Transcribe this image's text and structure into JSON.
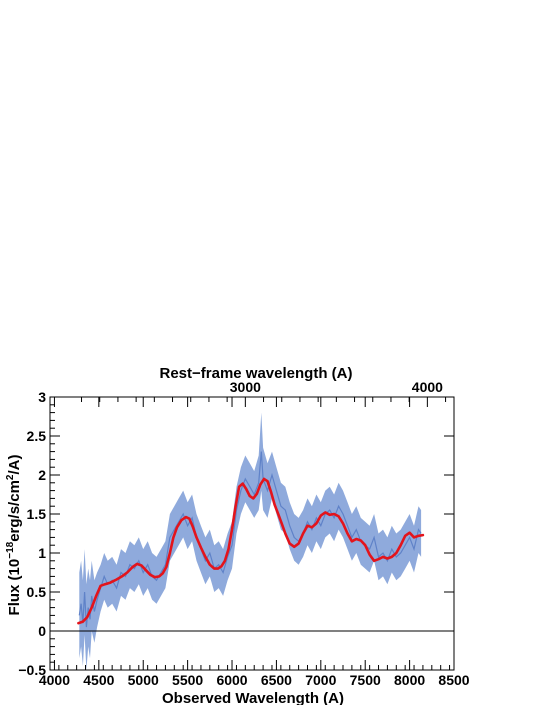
{
  "chart_data": {
    "type": "line",
    "xlabel": "Observed Wavelength (A)",
    "ylabel_parts": [
      "Flux (10",
      "−18",
      "erg/s/cm",
      "2",
      "/A)"
    ],
    "top_xlabel": "Rest−frame wavelength (A)",
    "xlim": [
      3950,
      8500
    ],
    "ylim": [
      -0.5,
      3
    ],
    "x_ticks": [
      4000,
      4500,
      5000,
      5500,
      6000,
      6500,
      7000,
      7500,
      8000,
      8500
    ],
    "y_ticks": [
      -0.5,
      0,
      0.5,
      1,
      1.5,
      2,
      2.5,
      3
    ],
    "x_tick_labels": [
      "4000",
      "4500",
      "5000",
      "5500",
      "6000",
      "6500",
      "7000",
      "7500",
      "8000",
      "8500"
    ],
    "y_tick_labels": [
      "−0.5",
      "0",
      "0.5",
      "1",
      "1.5",
      "2",
      "2.5",
      "3"
    ],
    "top_axis": {
      "redshift": 1.05,
      "ticks": [
        3000,
        4000
      ],
      "tick_labels": [
        "3000",
        "4000"
      ]
    },
    "zero_line": 0,
    "colors": {
      "spectrum": "#7b9bd6",
      "model": "#e3141c",
      "axis": "#000000"
    },
    "series": [
      {
        "role": "observed spectrum",
        "style": "noisy band",
        "x": [
          4280,
          4300,
          4320,
          4340,
          4360,
          4380,
          4400,
          4420,
          4450,
          4480,
          4520,
          4560,
          4600,
          4650,
          4700,
          4750,
          4800,
          4850,
          4900,
          4950,
          5000,
          5050,
          5100,
          5150,
          5200,
          5250,
          5300,
          5350,
          5400,
          5450,
          5500,
          5550,
          5600,
          5650,
          5700,
          5750,
          5800,
          5850,
          5900,
          5950,
          6000,
          6050,
          6100,
          6150,
          6200,
          6250,
          6300,
          6330,
          6350,
          6400,
          6450,
          6500,
          6550,
          6600,
          6650,
          6700,
          6750,
          6800,
          6850,
          6900,
          6950,
          7000,
          7050,
          7100,
          7150,
          7200,
          7250,
          7300,
          7350,
          7400,
          7450,
          7500,
          7550,
          7600,
          7650,
          7700,
          7750,
          7800,
          7850,
          7900,
          7950,
          8000,
          8050,
          8100,
          8130
        ],
        "y": [
          0.2,
          0.35,
          0.1,
          0.5,
          0.05,
          0.3,
          0.15,
          0.45,
          0.25,
          0.4,
          0.55,
          0.7,
          0.6,
          0.65,
          0.55,
          0.75,
          0.7,
          0.85,
          0.8,
          0.9,
          0.75,
          0.85,
          0.7,
          0.65,
          0.75,
          0.85,
          1.2,
          1.3,
          1.4,
          1.5,
          1.35,
          1.45,
          1.2,
          1.05,
          0.9,
          1.0,
          0.8,
          0.85,
          0.75,
          0.95,
          1.1,
          1.55,
          1.8,
          1.95,
          1.85,
          1.75,
          1.9,
          2.3,
          1.95,
          1.8,
          2.0,
          1.8,
          1.6,
          1.55,
          1.35,
          1.2,
          1.15,
          1.25,
          1.4,
          1.3,
          1.45,
          1.35,
          1.5,
          1.55,
          1.45,
          1.6,
          1.5,
          1.35,
          1.2,
          1.3,
          1.15,
          1.1,
          1.05,
          1.2,
          0.95,
          1.0,
          0.9,
          1.05,
          0.95,
          1.0,
          1.1,
          1.2,
          1.05,
          1.3,
          1.25
        ],
        "err": [
          0.55,
          0.55,
          0.55,
          0.55,
          0.55,
          0.5,
          0.5,
          0.45,
          0.4,
          0.35,
          0.3,
          0.3,
          0.3,
          0.3,
          0.3,
          0.3,
          0.3,
          0.3,
          0.3,
          0.3,
          0.3,
          0.3,
          0.3,
          0.3,
          0.3,
          0.3,
          0.3,
          0.3,
          0.3,
          0.3,
          0.3,
          0.3,
          0.3,
          0.3,
          0.3,
          0.3,
          0.3,
          0.3,
          0.3,
          0.3,
          0.3,
          0.3,
          0.3,
          0.3,
          0.3,
          0.3,
          0.35,
          0.5,
          0.4,
          0.35,
          0.3,
          0.3,
          0.3,
          0.3,
          0.3,
          0.3,
          0.3,
          0.3,
          0.3,
          0.3,
          0.3,
          0.3,
          0.3,
          0.3,
          0.3,
          0.3,
          0.3,
          0.3,
          0.3,
          0.3,
          0.3,
          0.3,
          0.3,
          0.3,
          0.3,
          0.3,
          0.3,
          0.3,
          0.3,
          0.3,
          0.3,
          0.3,
          0.3,
          0.3,
          0.3
        ]
      },
      {
        "role": "model fit",
        "style": "smooth line",
        "x": [
          4270,
          4320,
          4370,
          4420,
          4470,
          4520,
          4570,
          4630,
          4700,
          4760,
          4820,
          4880,
          4930,
          4980,
          5030,
          5080,
          5130,
          5180,
          5220,
          5260,
          5300,
          5340,
          5380,
          5430,
          5480,
          5520,
          5560,
          5600,
          5650,
          5700,
          5750,
          5800,
          5840,
          5880,
          5920,
          5960,
          6000,
          6040,
          6080,
          6120,
          6160,
          6200,
          6240,
          6280,
          6320,
          6360,
          6400,
          6440,
          6480,
          6520,
          6560,
          6600,
          6650,
          6700,
          6750,
          6800,
          6850,
          6900,
          6950,
          7000,
          7050,
          7100,
          7150,
          7200,
          7250,
          7300,
          7350,
          7400,
          7450,
          7500,
          7550,
          7600,
          7650,
          7700,
          7750,
          7800,
          7850,
          7900,
          7950,
          8000,
          8050,
          8100,
          8150
        ],
        "y": [
          0.1,
          0.12,
          0.18,
          0.3,
          0.45,
          0.58,
          0.6,
          0.62,
          0.66,
          0.7,
          0.75,
          0.82,
          0.86,
          0.84,
          0.78,
          0.72,
          0.69,
          0.7,
          0.74,
          0.82,
          1.0,
          1.2,
          1.33,
          1.42,
          1.46,
          1.44,
          1.33,
          1.2,
          1.07,
          0.95,
          0.85,
          0.8,
          0.8,
          0.83,
          0.9,
          1.05,
          1.3,
          1.6,
          1.85,
          1.89,
          1.82,
          1.73,
          1.7,
          1.76,
          1.88,
          1.95,
          1.92,
          1.78,
          1.62,
          1.5,
          1.38,
          1.25,
          1.12,
          1.08,
          1.12,
          1.25,
          1.35,
          1.33,
          1.38,
          1.48,
          1.52,
          1.49,
          1.5,
          1.47,
          1.38,
          1.25,
          1.15,
          1.18,
          1.16,
          1.1,
          0.98,
          0.9,
          0.92,
          0.95,
          0.93,
          0.95,
          1.0,
          1.1,
          1.22,
          1.26,
          1.2,
          1.22,
          1.23
        ]
      }
    ]
  }
}
